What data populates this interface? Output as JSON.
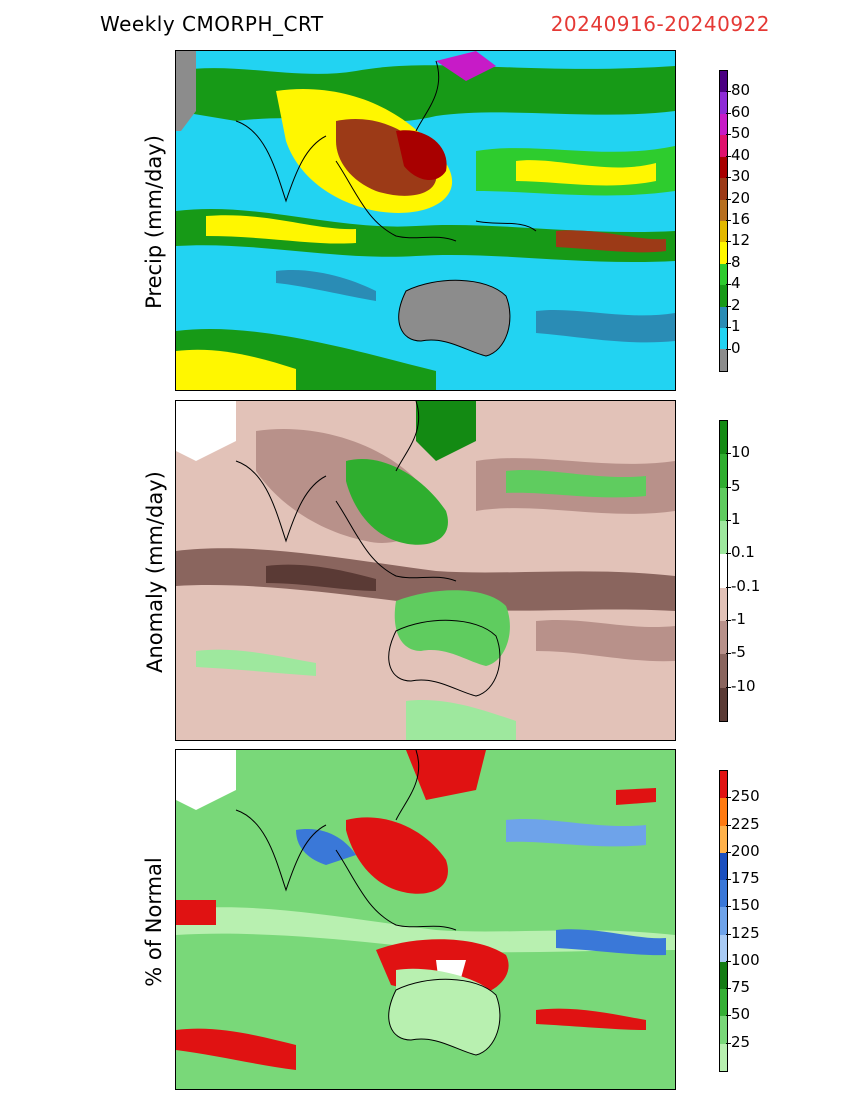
{
  "header": {
    "title": "Weekly CMORPH_CRT",
    "dates": "20240916-20240922"
  },
  "panels": [
    {
      "id": "precip",
      "ylabel": "Precip (mm/day)",
      "colorbar": {
        "labels": [
          "80",
          "60",
          "50",
          "40",
          "30",
          "20",
          "16",
          "12",
          "8",
          "4",
          "2",
          "1",
          "0"
        ],
        "colors": [
          "#4b0082",
          "#8e2bd6",
          "#c71bc7",
          "#e0116d",
          "#a80000",
          "#9c3a17",
          "#b87020",
          "#e3b800",
          "#fff700",
          "#2ecc2e",
          "#179a17",
          "#2a8cb5",
          "#22d3f2",
          "#8c8c8c"
        ]
      }
    },
    {
      "id": "anomaly",
      "ylabel": "Anomaly (mm/day)",
      "colorbar": {
        "labels": [
          "10",
          "5",
          "1",
          "0.1",
          "-0.1",
          "-1",
          "-5",
          "-10"
        ],
        "colors": [
          "#138a13",
          "#2fae2f",
          "#5fcc5f",
          "#9ee89e",
          "#ffffff",
          "#e2c2b8",
          "#b8918a",
          "#8a655e",
          "#5a3a35"
        ]
      }
    },
    {
      "id": "percent",
      "ylabel": "% of Normal",
      "colorbar": {
        "labels": [
          "250",
          "225",
          "200",
          "175",
          "150",
          "125",
          "100",
          "75",
          "50",
          "25"
        ],
        "colors": [
          "#e01212",
          "#ff7a10",
          "#ffb24a",
          "#1a4fbf",
          "#3a78d8",
          "#6ea3ea",
          "#a9cbf5",
          "#137c13",
          "#35b035",
          "#79d879",
          "#b8f0b0"
        ]
      }
    }
  ],
  "colors": {
    "dates_color": "#e53935",
    "coastline": "#000000"
  }
}
